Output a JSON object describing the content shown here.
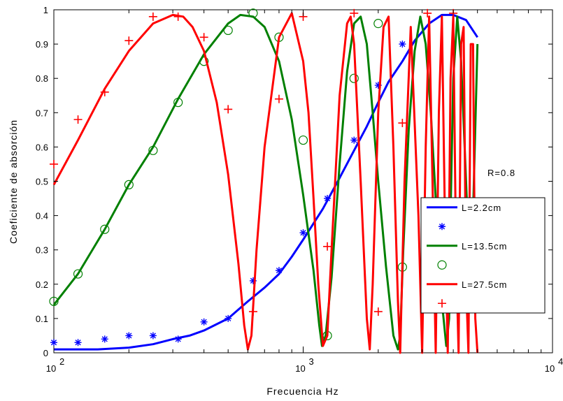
{
  "chart_data": {
    "type": "line",
    "xscale": "log",
    "xlim": [
      100,
      10000
    ],
    "ylim": [
      0,
      1
    ],
    "xlabel": "Frecuencia Hz",
    "ylabel": "Coeficiente de absorción",
    "annotation": "R=0.8",
    "x_ticks": [
      {
        "value": 100,
        "base": "10",
        "exp": "2"
      },
      {
        "value": 1000,
        "base": "10",
        "exp": "3"
      },
      {
        "value": 10000,
        "base": "10",
        "exp": "4"
      }
    ],
    "y_ticks": [
      0,
      0.1,
      0.2,
      0.3,
      0.4,
      0.5,
      0.6,
      0.7,
      0.8,
      0.9,
      1
    ],
    "y_tick_labels": [
      "0",
      "0.1",
      "0.2",
      "0.3",
      "0.4",
      "0.5",
      "0.6",
      "0.7",
      "0.8",
      "0.9",
      "1"
    ],
    "series": [
      {
        "name": "L=2.2cm",
        "kind": "line",
        "color": "#0000ff",
        "x": [
          100,
          150,
          200,
          250,
          300,
          350,
          400,
          500,
          600,
          700,
          800,
          900,
          1000,
          1200,
          1400,
          1600,
          1800,
          2000,
          2200,
          2500,
          2800,
          3200,
          3600,
          4000,
          4500,
          5000
        ],
        "y": [
          0.01,
          0.01,
          0.015,
          0.025,
          0.04,
          0.05,
          0.065,
          0.1,
          0.15,
          0.19,
          0.23,
          0.28,
          0.33,
          0.42,
          0.51,
          0.59,
          0.66,
          0.73,
          0.79,
          0.85,
          0.91,
          0.96,
          0.985,
          0.985,
          0.97,
          0.92
        ]
      },
      {
        "name": "",
        "kind": "markers",
        "marker": "asterisk",
        "color": "#0000ff",
        "x": [
          100,
          125,
          160,
          200,
          250,
          315,
          400,
          500,
          630,
          800,
          1000,
          1250,
          1600,
          2000,
          2500
        ],
        "y": [
          0.03,
          0.03,
          0.04,
          0.05,
          0.05,
          0.04,
          0.09,
          0.1,
          0.21,
          0.24,
          0.35,
          0.45,
          0.62,
          0.78,
          0.9
        ]
      },
      {
        "name": "L=13.5cm",
        "kind": "line",
        "color": "#008000",
        "x": [
          100,
          125,
          160,
          200,
          250,
          315,
          400,
          500,
          560,
          630,
          700,
          800,
          900,
          1000,
          1100,
          1160,
          1190,
          1230,
          1300,
          1400,
          1500,
          1600,
          1700,
          1800,
          1900,
          2000,
          2150,
          2300,
          2400,
          2450,
          2520,
          2650,
          2800,
          2950,
          3100,
          3250,
          3400,
          3600,
          3750,
          3850,
          3900,
          4000,
          4150,
          4300,
          4500,
          4700,
          5000
        ],
        "y": [
          0.14,
          0.23,
          0.36,
          0.49,
          0.6,
          0.74,
          0.87,
          0.96,
          0.985,
          0.98,
          0.95,
          0.85,
          0.68,
          0.46,
          0.24,
          0.08,
          0.02,
          0.05,
          0.22,
          0.55,
          0.82,
          0.96,
          0.98,
          0.9,
          0.7,
          0.5,
          0.25,
          0.05,
          0.01,
          0.05,
          0.3,
          0.65,
          0.88,
          0.98,
          0.9,
          0.7,
          0.45,
          0.15,
          0.02,
          0.1,
          0.4,
          0.8,
          0.98,
          0.85,
          0.5,
          0.15,
          0.9
        ]
      },
      {
        "name": "",
        "kind": "markers",
        "marker": "circle",
        "color": "#008000",
        "x": [
          100,
          125,
          160,
          200,
          250,
          315,
          400,
          500,
          630,
          800,
          1000,
          1250,
          1600,
          2000,
          2500
        ],
        "y": [
          0.15,
          0.23,
          0.36,
          0.49,
          0.59,
          0.73,
          0.85,
          0.94,
          0.99,
          0.92,
          0.62,
          0.05,
          0.8,
          0.96,
          0.25
        ]
      },
      {
        "name": "L=27.5cm",
        "kind": "line",
        "color": "#ff0000",
        "x": [
          100,
          125,
          160,
          200,
          250,
          300,
          330,
          360,
          400,
          450,
          500,
          550,
          580,
          600,
          620,
          650,
          700,
          800,
          900,
          1000,
          1050,
          1100,
          1150,
          1200,
          1250,
          1300,
          1400,
          1500,
          1550,
          1600,
          1700,
          1800,
          1850,
          1900,
          2000,
          2100,
          2200,
          2300,
          2400,
          2450,
          2550,
          2700,
          2900,
          3000,
          3100,
          3200,
          3300,
          3400,
          3500,
          3600,
          3700,
          3800,
          3900,
          4000,
          4100,
          4200,
          4300,
          4400,
          4500,
          4600,
          4700,
          4800,
          4900,
          5000
        ],
        "y": [
          0.49,
          0.62,
          0.77,
          0.88,
          0.96,
          0.985,
          0.98,
          0.95,
          0.88,
          0.73,
          0.52,
          0.26,
          0.08,
          0.01,
          0.05,
          0.3,
          0.6,
          0.92,
          0.99,
          0.85,
          0.7,
          0.45,
          0.2,
          0.02,
          0.05,
          0.3,
          0.75,
          0.96,
          0.98,
          0.9,
          0.5,
          0.1,
          0.01,
          0.2,
          0.7,
          0.95,
          0.98,
          0.6,
          0.15,
          0.0,
          0.5,
          0.95,
          0.4,
          0.0,
          0.6,
          0.98,
          0.5,
          0.0,
          0.7,
          0.98,
          0.4,
          0.0,
          0.8,
          0.98,
          0.3,
          0.0,
          0.9,
          0.95,
          0.2,
          0.0,
          0.9,
          0.9,
          0.1,
          0.0
        ]
      },
      {
        "name": "",
        "kind": "markers",
        "marker": "plus",
        "color": "#ff0000",
        "x": [
          100,
          125,
          160,
          200,
          250,
          315,
          400,
          500,
          630,
          800,
          1000,
          1250,
          1600,
          2000,
          2500,
          3150,
          4000
        ],
        "y": [
          0.55,
          0.68,
          0.76,
          0.91,
          0.98,
          0.98,
          0.92,
          0.71,
          0.12,
          0.74,
          0.98,
          0.31,
          0.99,
          0.12,
          0.67,
          0.99,
          0.99
        ]
      }
    ],
    "legend": {
      "location": "right",
      "entries": [
        {
          "label": "L=2.2cm",
          "kind": "line",
          "color": "#0000ff"
        },
        {
          "label": "",
          "kind": "marker",
          "marker": "asterisk",
          "color": "#0000ff"
        },
        {
          "label": "L=13.5cm",
          "kind": "line",
          "color": "#008000"
        },
        {
          "label": "",
          "kind": "marker",
          "marker": "circle",
          "color": "#008000"
        },
        {
          "label": "L=27.5cm",
          "kind": "line",
          "color": "#ff0000"
        },
        {
          "label": "",
          "kind": "marker",
          "marker": "plus",
          "color": "#ff0000"
        }
      ]
    }
  }
}
